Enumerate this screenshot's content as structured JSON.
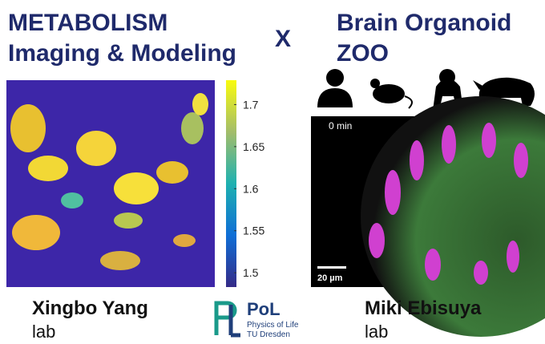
{
  "left": {
    "title_lines": [
      "METABOLISM",
      "Imaging & Modeling"
    ],
    "colorbar": {
      "ylim": [
        1.483,
        1.729
      ],
      "yticks": [
        1.7,
        1.65,
        1.6,
        1.55,
        1.5
      ]
    },
    "person": "Xingbo Yang",
    "suffix": "lab"
  },
  "separator": "X",
  "right": {
    "title_lines": [
      "Brain Organoid",
      "ZOO"
    ],
    "time_label": "0 min",
    "scale_bar": "20 µm",
    "person": "Miki Ebisuya",
    "suffix": "lab"
  },
  "logo": {
    "name": "PoL",
    "subtitle_lines": [
      "Physics of Life",
      "TU Dresden"
    ]
  }
}
